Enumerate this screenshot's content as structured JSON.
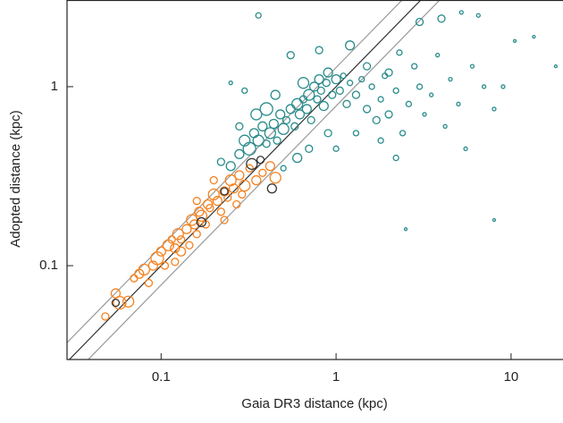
{
  "chart_data": {
    "type": "scatter",
    "x_label": "Gaia DR3 distance (kpc)",
    "y_label": "Adopted distance (kpc)",
    "log_x": true,
    "log_y": true,
    "xlim": [
      0.029,
      19.8
    ],
    "ylim": [
      0.0299,
      3.05
    ],
    "xticks": [
      0.1,
      1,
      10
    ],
    "yticks": [
      0.1,
      1
    ],
    "ratio_lines": [
      {
        "ratio": 0.78,
        "color": "#999999"
      },
      {
        "ratio": 1,
        "color": "#333333"
      },
      {
        "ratio": 1.28,
        "color": "#999999"
      }
    ],
    "series": [
      {
        "color": "#f58220",
        "x": [
          0.048,
          0.055,
          0.058,
          0.065,
          0.07,
          0.075,
          0.08,
          0.085,
          0.09,
          0.095,
          0.1,
          0.105,
          0.11,
          0.115,
          0.12,
          0.125,
          0.13,
          0.14,
          0.145,
          0.15,
          0.155,
          0.16,
          0.165,
          0.17,
          0.18,
          0.185,
          0.19,
          0.2,
          0.21,
          0.22,
          0.23,
          0.24,
          0.25,
          0.26,
          0.27,
          0.28,
          0.3,
          0.32,
          0.35,
          0.38,
          0.42,
          0.45,
          0.13,
          0.16,
          0.2,
          0.23,
          0.29,
          0.12
        ],
        "values": [
          0.052,
          0.07,
          0.062,
          0.063,
          0.085,
          0.09,
          0.095,
          0.08,
          0.1,
          0.11,
          0.12,
          0.1,
          0.13,
          0.14,
          0.125,
          0.15,
          0.14,
          0.16,
          0.13,
          0.18,
          0.17,
          0.15,
          0.2,
          0.19,
          0.17,
          0.22,
          0.21,
          0.25,
          0.23,
          0.2,
          0.26,
          0.24,
          0.3,
          0.27,
          0.22,
          0.32,
          0.28,
          0.35,
          0.3,
          0.33,
          0.36,
          0.31,
          0.12,
          0.23,
          0.3,
          0.18,
          0.25,
          0.105
        ],
        "sizes": [
          4,
          5,
          7,
          6,
          4,
          5,
          6,
          4,
          5,
          7,
          5,
          4,
          6,
          4,
          5,
          6,
          4,
          5,
          4,
          6,
          5,
          4,
          5,
          6,
          4,
          5,
          4,
          6,
          5,
          4,
          5,
          4,
          6,
          5,
          4,
          5,
          6,
          4,
          5,
          4,
          5,
          6,
          5,
          4,
          4,
          4,
          4,
          4
        ]
      },
      {
        "color": "#2a8c8c",
        "x": [
          0.22,
          0.25,
          0.28,
          0.3,
          0.32,
          0.34,
          0.36,
          0.38,
          0.4,
          0.42,
          0.44,
          0.46,
          0.48,
          0.5,
          0.52,
          0.55,
          0.58,
          0.6,
          0.62,
          0.65,
          0.68,
          0.7,
          0.72,
          0.75,
          0.78,
          0.8,
          0.82,
          0.85,
          0.88,
          0.9,
          0.95,
          1.0,
          1.05,
          1.1,
          1.15,
          1.2,
          1.3,
          1.4,
          1.5,
          1.6,
          1.7,
          1.8,
          1.9,
          2.0,
          2.2,
          2.4,
          2.6,
          2.8,
          3.0,
          3.2,
          3.5,
          3.8,
          4.2,
          4.5,
          5.0,
          5.5,
          6.0,
          7.0,
          8.0,
          9.0,
          6.5,
          10.5,
          13.5,
          18,
          8,
          2.5,
          0.3,
          0.36,
          0.55,
          0.8,
          1.2,
          1.5,
          2.0,
          2.3,
          3.0,
          4.0,
          5.2,
          1.8,
          2.2,
          0.25,
          0.6,
          0.7,
          0.5,
          0.9,
          1.0,
          1.3,
          0.4,
          0.35,
          0.45,
          0.65,
          0.28
        ],
        "values": [
          0.38,
          0.36,
          0.42,
          0.5,
          0.45,
          0.55,
          0.5,
          0.6,
          0.48,
          0.55,
          0.62,
          0.5,
          0.7,
          0.58,
          0.65,
          0.75,
          0.6,
          0.8,
          0.7,
          0.85,
          0.75,
          0.9,
          0.65,
          1.0,
          0.85,
          1.1,
          0.95,
          0.78,
          1.05,
          1.2,
          0.9,
          1.1,
          0.95,
          1.15,
          0.8,
          1.05,
          0.9,
          1.1,
          0.75,
          1.0,
          0.65,
          0.85,
          1.15,
          0.7,
          0.95,
          0.55,
          0.8,
          1.3,
          1.0,
          0.7,
          0.9,
          1.5,
          0.6,
          1.1,
          0.8,
          0.45,
          1.3,
          1.0,
          0.75,
          1.0,
          2.5,
          1.8,
          1.9,
          1.3,
          0.18,
          0.16,
          0.95,
          2.5,
          1.5,
          1.6,
          1.7,
          1.3,
          1.2,
          1.55,
          2.3,
          2.4,
          2.6,
          0.5,
          0.4,
          1.05,
          0.4,
          0.45,
          0.35,
          0.55,
          0.45,
          0.55,
          0.75,
          0.7,
          0.9,
          1.05,
          0.6
        ],
        "sizes": [
          4,
          5,
          5,
          6,
          7,
          5,
          6,
          5,
          4,
          6,
          5,
          4,
          5,
          6,
          4,
          5,
          4,
          6,
          5,
          4,
          5,
          6,
          4,
          5,
          4,
          5,
          4,
          5,
          4,
          5,
          4,
          5,
          4,
          3,
          4,
          3,
          4,
          3,
          4,
          3,
          4,
          3,
          3,
          4,
          3,
          3,
          3,
          3,
          3,
          2,
          2,
          2,
          2,
          2,
          2,
          2,
          2,
          2,
          2,
          2,
          2,
          1.5,
          1.5,
          1.5,
          1.5,
          1.5,
          3,
          3,
          4,
          4,
          5,
          4,
          4,
          3,
          4,
          4,
          2,
          3,
          3,
          2,
          5,
          4,
          3,
          4,
          3,
          3,
          7,
          6,
          5,
          6,
          4
        ]
      },
      {
        "color": "#333333",
        "x": [
          0.055,
          0.17,
          0.33,
          0.43,
          0.37,
          0.23
        ],
        "values": [
          0.062,
          0.175,
          0.37,
          0.27,
          0.39,
          0.26
        ],
        "sizes": [
          4,
          5,
          6,
          5,
          4,
          4
        ]
      }
    ]
  }
}
